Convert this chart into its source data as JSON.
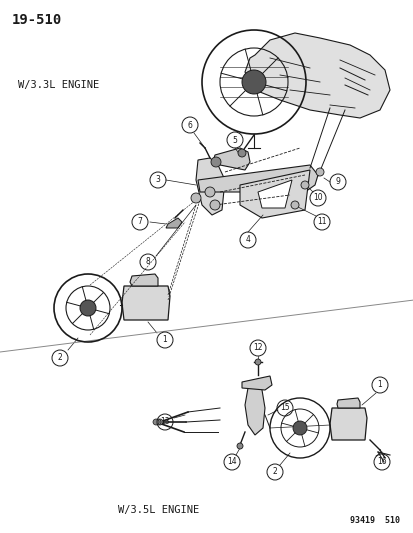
{
  "page_number": "19-510",
  "background_color": "#ffffff",
  "line_color": "#1a1a1a",
  "top_label": "W/3.3L ENGINE",
  "bottom_label": "W/3.5L ENGINE",
  "footnote": "93419  510",
  "fig_width": 4.14,
  "fig_height": 5.33,
  "dpi": 100
}
